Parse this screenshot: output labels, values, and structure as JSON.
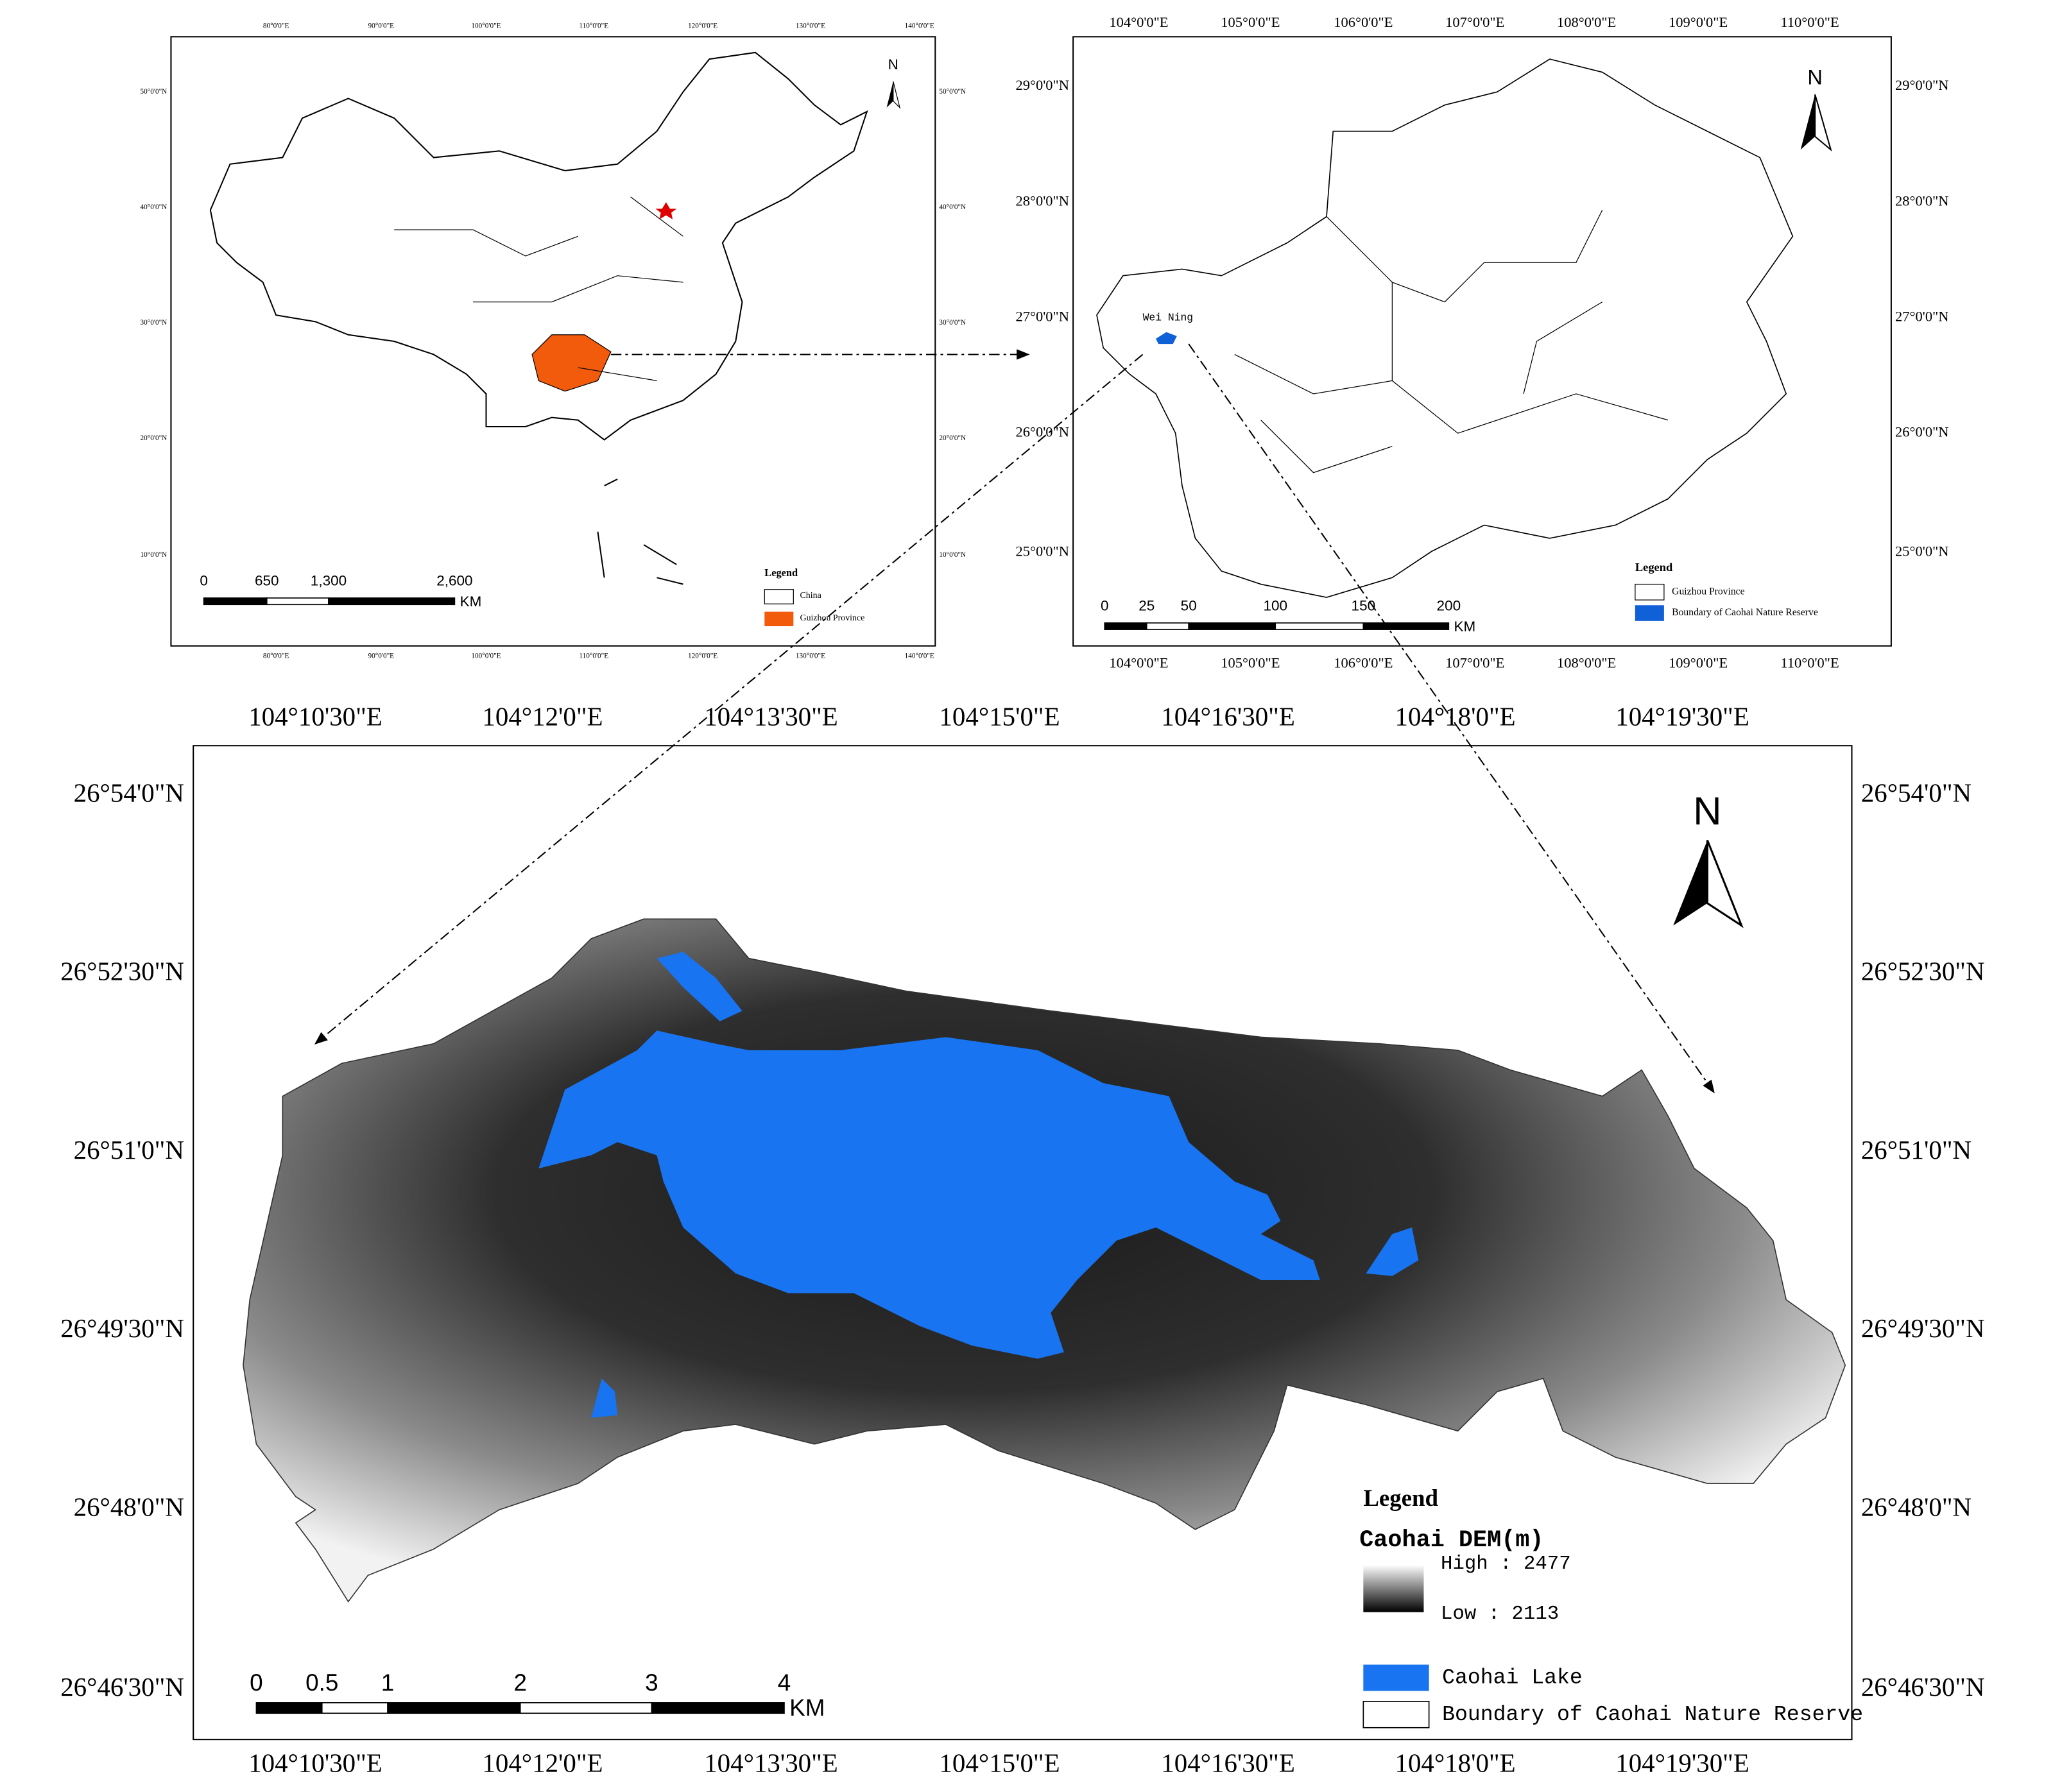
{
  "panel_china": {
    "north": "N",
    "top_ticks": [
      "80°0'0\"E",
      "90°0'0\"E",
      "100°0'0\"E",
      "110°0'0\"E",
      "120°0'0\"E",
      "130°0'0\"E",
      "140°0'0\"E"
    ],
    "bottom_ticks": [
      "80°0'0\"E",
      "90°0'0\"E",
      "100°0'0\"E",
      "110°0'0\"E",
      "120°0'0\"E",
      "130°0'0\"E",
      "140°0'0\"E"
    ],
    "left_ticks": [
      "50°0'0\"N",
      "40°0'0\"N",
      "30°0'0\"N",
      "20°0'0\"N",
      "10°0'0\"N"
    ],
    "right_ticks": [
      "50°0'0\"N",
      "40°0'0\"N",
      "30°0'0\"N",
      "20°0'0\"N",
      "10°0'0\"N"
    ],
    "scale_labels": [
      "0",
      "650",
      "1,300",
      "2,600"
    ],
    "scale_unit": "KM",
    "legend": {
      "title": "Legend",
      "items": [
        "China",
        "Guizhou Province"
      ]
    }
  },
  "panel_guizhou": {
    "north": "N",
    "place_label": "Wei Ning",
    "top_ticks": [
      "104°0'0\"E",
      "105°0'0\"E",
      "106°0'0\"E",
      "107°0'0\"E",
      "108°0'0\"E",
      "109°0'0\"E",
      "110°0'0\"E"
    ],
    "bottom_ticks": [
      "104°0'0\"E",
      "105°0'0\"E",
      "106°0'0\"E",
      "107°0'0\"E",
      "108°0'0\"E",
      "109°0'0\"E",
      "110°0'0\"E"
    ],
    "left_ticks": [
      "29°0'0\"N",
      "28°0'0\"N",
      "27°0'0\"N",
      "26°0'0\"N",
      "25°0'0\"N"
    ],
    "right_ticks": [
      "29°0'0\"N",
      "28°0'0\"N",
      "27°0'0\"N",
      "26°0'0\"N",
      "25°0'0\"N"
    ],
    "scale_labels": [
      "0",
      "25",
      "50",
      "100",
      "150",
      "200"
    ],
    "scale_unit": "KM",
    "legend": {
      "title": "Legend",
      "items": [
        "Guizhou Province",
        "Boundary of Caohai Nature Reserve"
      ]
    }
  },
  "panel_caohai": {
    "north": "N",
    "top_ticks": [
      "104°10'30\"E",
      "104°12'0\"E",
      "104°13'30\"E",
      "104°15'0\"E",
      "104°16'30\"E",
      "104°18'0\"E",
      "104°19'30\"E"
    ],
    "bottom_ticks": [
      "104°10'30\"E",
      "104°12'0\"E",
      "104°13'30\"E",
      "104°15'0\"E",
      "104°16'30\"E",
      "104°18'0\"E",
      "104°19'30\"E"
    ],
    "left_ticks": [
      "26°54'0\"N",
      "26°52'30\"N",
      "26°51'0\"N",
      "26°49'30\"N",
      "26°48'0\"N",
      "26°46'30\"N"
    ],
    "right_ticks": [
      "26°54'0\"N",
      "26°52'30\"N",
      "26°51'0\"N",
      "26°49'30\"N",
      "26°48'0\"N",
      "26°46'30\"N"
    ],
    "scale_labels": [
      "0",
      "0.5",
      "1",
      "2",
      "3",
      "4"
    ],
    "scale_unit": "KM",
    "legend": {
      "title": "Legend",
      "dem_title": "Caohai DEM(m)",
      "high": "High : 2477",
      "low": "Low : 2113",
      "items": [
        "Caohai Lake",
        "Boundary of Caohai Nature Reserve"
      ]
    }
  }
}
